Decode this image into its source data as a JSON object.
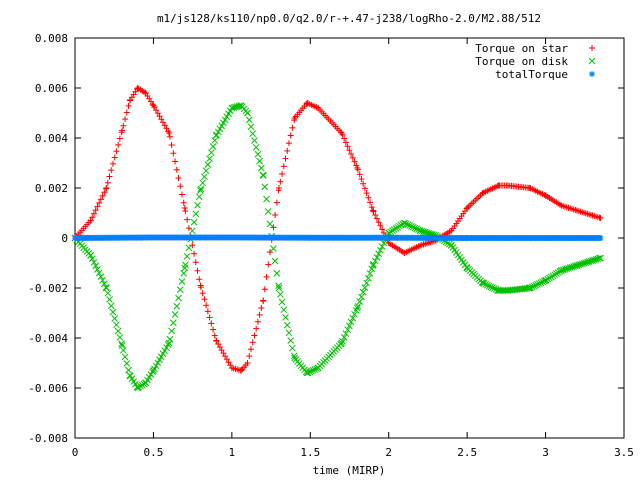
{
  "chart_data": {
    "type": "scatter",
    "title": "m1/js128/ks110/np0.0/q2.0/r-+.47-j238/logRho-2.0/M2.88/512",
    "xlabel": "time (MIRP)",
    "ylabel": "",
    "xlim": [
      0,
      3.5
    ],
    "ylim": [
      -0.008,
      0.008
    ],
    "xticks": [
      {
        "value": 0,
        "label": "0"
      },
      {
        "value": 0.5,
        "label": "0.5"
      },
      {
        "value": 1,
        "label": "1"
      },
      {
        "value": 1.5,
        "label": "1.5"
      },
      {
        "value": 2,
        "label": "2"
      },
      {
        "value": 2.5,
        "label": "2.5"
      },
      {
        "value": 3,
        "label": "3"
      },
      {
        "value": 3.5,
        "label": "3.5"
      }
    ],
    "yticks": [
      {
        "value": 0.008,
        "label": "0.008"
      },
      {
        "value": 0.006,
        "label": "0.006"
      },
      {
        "value": 0.004,
        "label": "0.004"
      },
      {
        "value": 0.002,
        "label": "0.002"
      },
      {
        "value": 0,
        "label": "0"
      },
      {
        "value": -0.002,
        "label": "-0.002"
      },
      {
        "value": -0.004,
        "label": "-0.004"
      },
      {
        "value": -0.006,
        "label": "-0.006"
      },
      {
        "value": -0.008,
        "label": "-0.008"
      }
    ],
    "grid": false,
    "legend_position": "top-right",
    "series": [
      {
        "name": "Torque on star",
        "marker": "plus",
        "color": "#ff0000",
        "x": [
          0.0,
          0.1,
          0.2,
          0.3,
          0.35,
          0.4,
          0.45,
          0.5,
          0.6,
          0.7,
          0.8,
          0.9,
          1.0,
          1.06,
          1.1,
          1.2,
          1.3,
          1.4,
          1.48,
          1.55,
          1.7,
          1.8,
          1.9,
          2.0,
          2.1,
          2.2,
          2.3,
          2.4,
          2.5,
          2.6,
          2.7,
          2.76,
          2.9,
          3.0,
          3.1,
          3.2,
          3.3,
          3.35
        ],
        "values": [
          0.0,
          0.0007,
          0.002,
          0.0043,
          0.0055,
          0.006,
          0.0058,
          0.0053,
          0.0042,
          0.0012,
          -0.0019,
          -0.0041,
          -0.0052,
          -0.0053,
          -0.005,
          -0.0025,
          0.002,
          0.0048,
          0.0054,
          0.0052,
          0.0042,
          0.0028,
          0.0011,
          -0.0002,
          -0.0006,
          -0.0003,
          -0.0001,
          0.0003,
          0.0012,
          0.0018,
          0.0021,
          0.0021,
          0.002,
          0.0017,
          0.0013,
          0.0011,
          0.0009,
          0.0008
        ]
      },
      {
        "name": "Torque on disk",
        "marker": "cross",
        "color": "#00c000",
        "x": [
          0.0,
          0.1,
          0.2,
          0.3,
          0.35,
          0.4,
          0.45,
          0.5,
          0.6,
          0.7,
          0.8,
          0.9,
          1.0,
          1.06,
          1.1,
          1.2,
          1.3,
          1.4,
          1.48,
          1.55,
          1.7,
          1.8,
          1.9,
          2.0,
          2.1,
          2.2,
          2.3,
          2.4,
          2.5,
          2.6,
          2.7,
          2.76,
          2.9,
          3.0,
          3.1,
          3.2,
          3.3,
          3.35
        ],
        "values": [
          0.0,
          -0.0007,
          -0.002,
          -0.0043,
          -0.0055,
          -0.006,
          -0.0058,
          -0.0053,
          -0.0042,
          -0.0012,
          0.0019,
          0.0041,
          0.0052,
          0.0053,
          0.005,
          0.0025,
          -0.002,
          -0.0048,
          -0.0054,
          -0.0052,
          -0.0042,
          -0.0028,
          -0.0011,
          0.0002,
          0.0006,
          0.0003,
          0.0001,
          -0.0003,
          -0.0012,
          -0.0018,
          -0.0021,
          -0.0021,
          -0.002,
          -0.0017,
          -0.0013,
          -0.0011,
          -0.0009,
          -0.0008
        ]
      },
      {
        "name": "totalTorque",
        "marker": "star",
        "color": "#0080ff",
        "x": [
          0.0,
          0.5,
          1.0,
          1.5,
          2.0,
          2.5,
          3.0,
          3.35
        ],
        "values": [
          0.0,
          2e-05,
          2e-05,
          1e-05,
          1e-05,
          0.0,
          0.0,
          0.0
        ]
      }
    ]
  }
}
